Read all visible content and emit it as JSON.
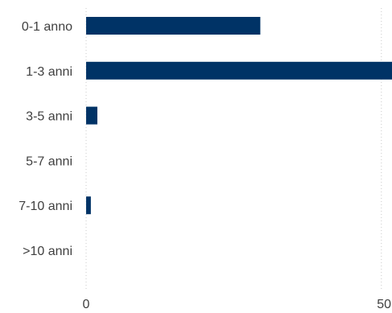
{
  "chart_data": {
    "type": "bar",
    "orientation": "horizontal",
    "title": "",
    "xlabel": "",
    "ylabel": "",
    "categories": [
      "0-1 anno",
      "1-3 anni",
      "3-5 anni",
      "5-7 anni",
      "7-10 anni",
      ">10 anni"
    ],
    "values": [
      29.5,
      51.8,
      1.9,
      0,
      0.8,
      0
    ],
    "xlim": [
      0,
      51.8
    ],
    "xticks": [
      0,
      50
    ],
    "grid": "vertical dotted at x ticks",
    "legend": "none",
    "bar_color": "#003366",
    "grid_color": "#c8c8c8",
    "axis_color": "#c8c8c8"
  }
}
